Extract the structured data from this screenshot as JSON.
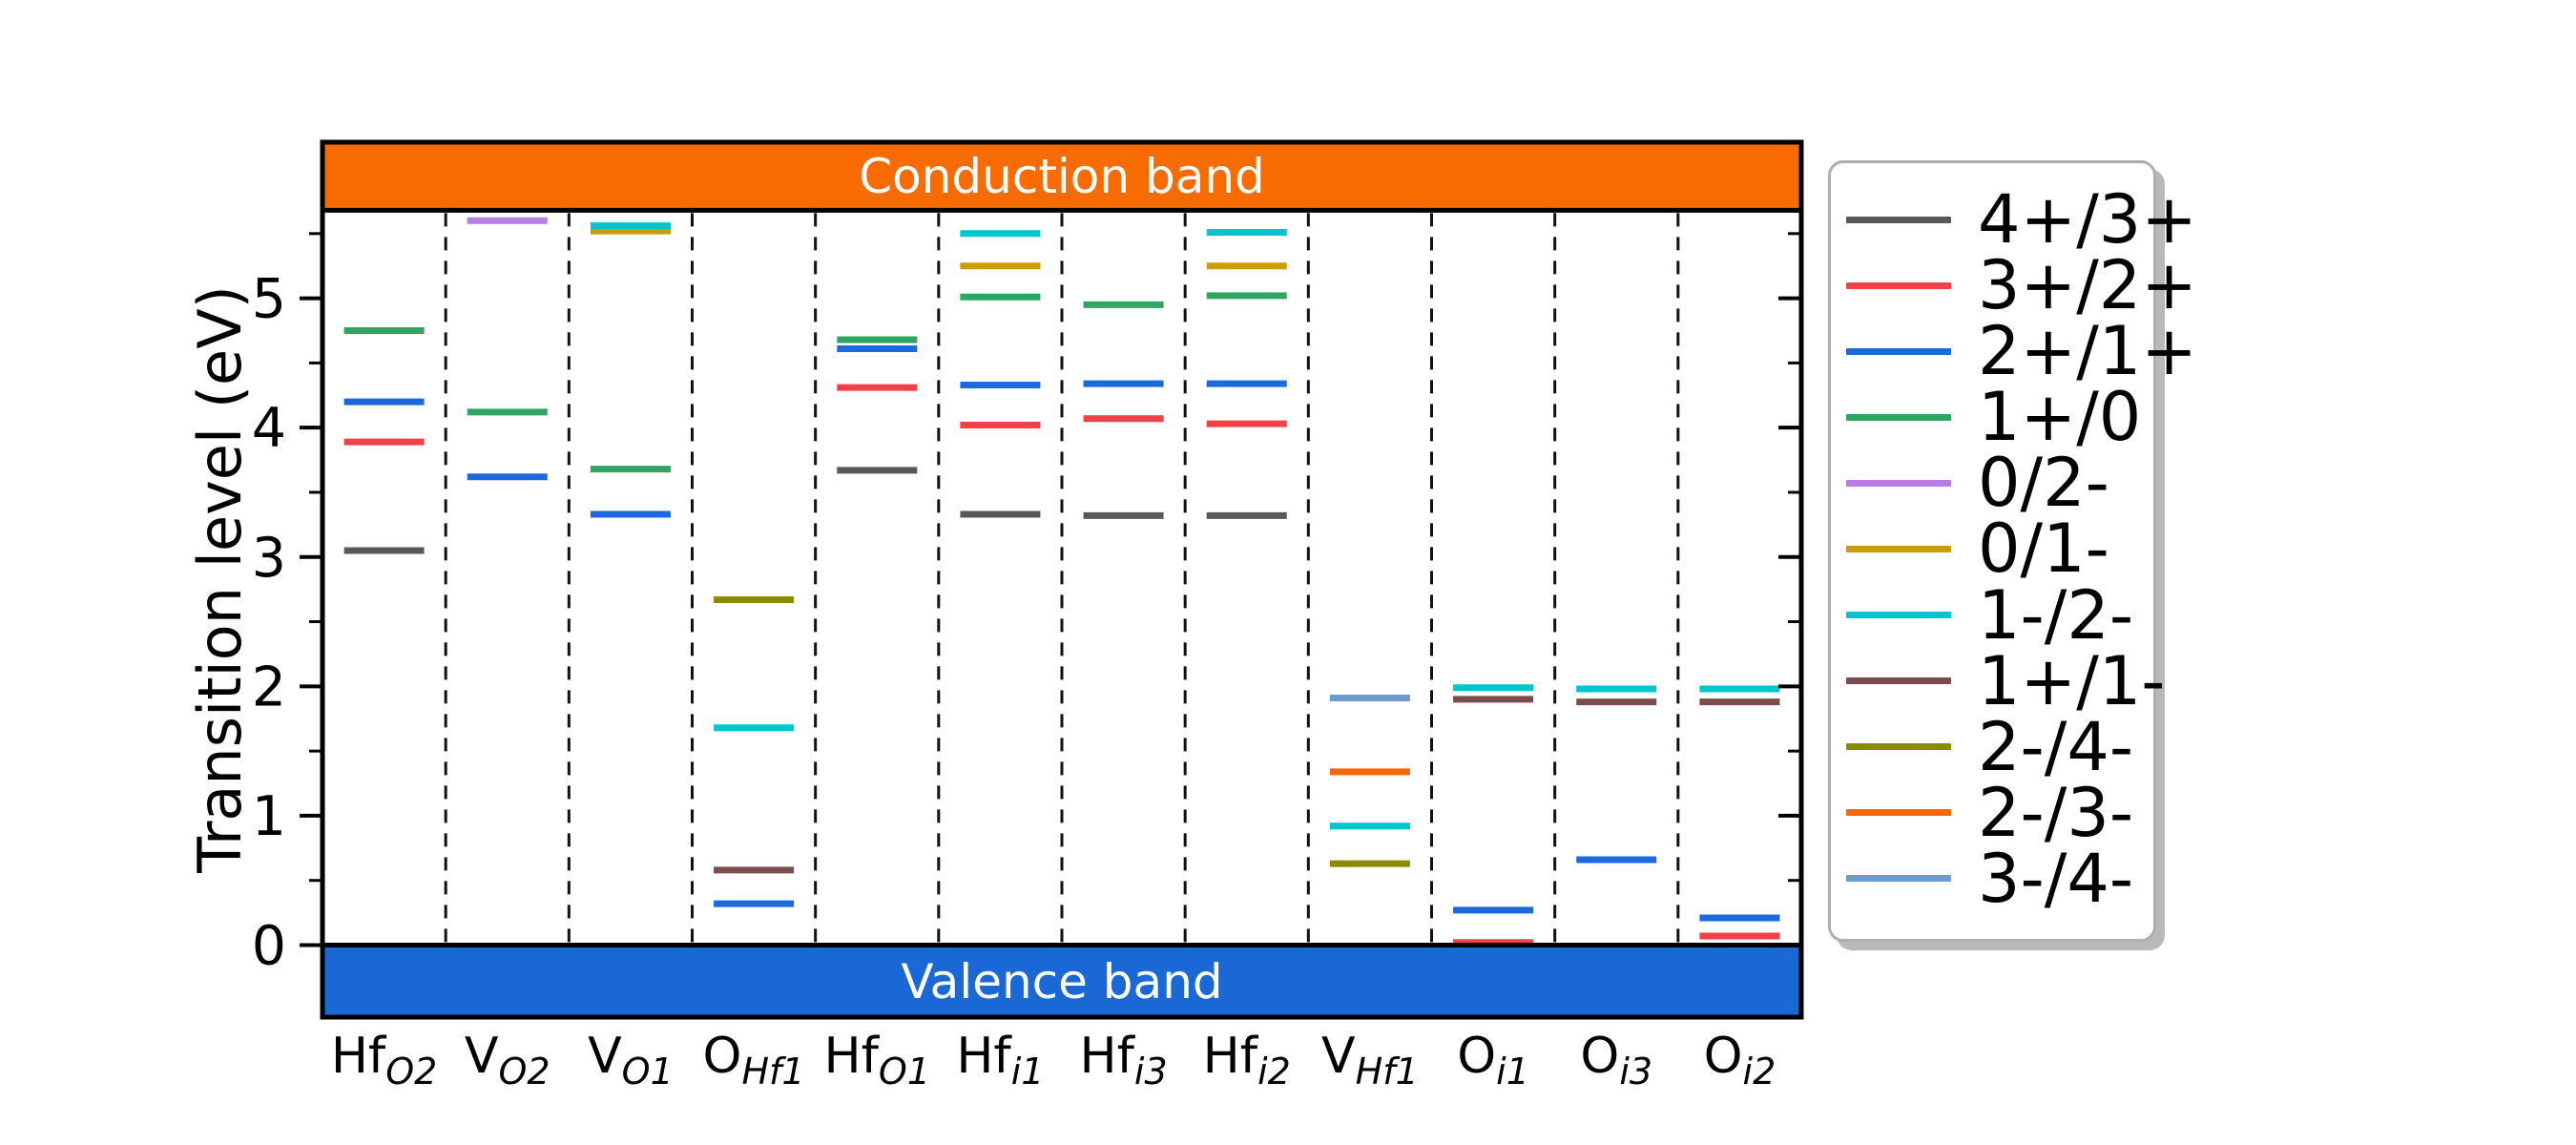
{
  "figure": {
    "background_color": "#ffffff"
  },
  "y_axis": {
    "label": "Transition level (eV)",
    "major_ticks": [
      0,
      1,
      2,
      3,
      4,
      5
    ],
    "minor_ticks": [
      0.5,
      1.5,
      2.5,
      3.5,
      4.5,
      5.5
    ],
    "range_eV": [
      -0.56,
      6.21
    ]
  },
  "bands": {
    "conduction": {
      "label": "Conduction band",
      "color": "#F86B00",
      "edge_eV": 5.68
    },
    "valence": {
      "label": "Valence band",
      "color": "#1A67D6",
      "edge_eV": 0.0
    }
  },
  "legend": {
    "entries": [
      {
        "label": "4+/3+",
        "color": "#58585a"
      },
      {
        "label": "3+/2+",
        "color": "#EF4146"
      },
      {
        "label": "2+/1+",
        "color": "#1C69DE"
      },
      {
        "label": "1+/0",
        "color": "#2FA463"
      },
      {
        "label": "0/2-",
        "color": "#BA7DE2"
      },
      {
        "label": "0/1-",
        "color": "#CB9D00"
      },
      {
        "label": "1-/2-",
        "color": "#00C4CE"
      },
      {
        "label": "1+/1-",
        "color": "#7C4B4B"
      },
      {
        "label": "2-/4-",
        "color": "#8B8B00"
      },
      {
        "label": "2-/3-",
        "color": "#FB6502"
      },
      {
        "label": "3-/4-",
        "color": "#6D9BD1"
      }
    ]
  },
  "chart_data": {
    "type": "scatter",
    "subtype": "defect-charge-transition-levels",
    "title": "",
    "xlabel": "",
    "ylabel": "Transition level (eV)",
    "ylim": [
      -0.56,
      6.21
    ],
    "conduction_band_edge_eV": 5.68,
    "valence_band_edge_eV": 0.0,
    "grid": false,
    "legend_position": "right-outside",
    "categories": [
      "Hf_O2",
      "V_O2",
      "V_O1",
      "O_Hf1",
      "Hf_O1",
      "Hf_i1",
      "Hf_i3",
      "Hf_i2",
      "V_Hf1",
      "O_i1",
      "O_i3",
      "O_i2"
    ],
    "columns": [
      {
        "main": "Hf",
        "sub": "O2",
        "levels": [
          {
            "transition": "4+/3+",
            "energy_eV": 3.05
          },
          {
            "transition": "3+/2+",
            "energy_eV": 3.89
          },
          {
            "transition": "2+/1+",
            "energy_eV": 4.2
          },
          {
            "transition": "1+/0",
            "energy_eV": 4.75
          }
        ]
      },
      {
        "main": "V",
        "sub": "O2",
        "levels": [
          {
            "transition": "2+/1+",
            "energy_eV": 3.62
          },
          {
            "transition": "1+/0",
            "energy_eV": 4.12
          },
          {
            "transition": "0/2-",
            "energy_eV": 5.6
          }
        ]
      },
      {
        "main": "V",
        "sub": "O1",
        "levels": [
          {
            "transition": "2+/1+",
            "energy_eV": 3.33
          },
          {
            "transition": "1+/0",
            "energy_eV": 3.68
          },
          {
            "transition": "0/1-",
            "energy_eV": 5.52
          },
          {
            "transition": "1-/2-",
            "energy_eV": 5.56
          }
        ]
      },
      {
        "main": "O",
        "sub": "Hf1",
        "levels": [
          {
            "transition": "2+/1+",
            "energy_eV": 0.32
          },
          {
            "transition": "1+/1-",
            "energy_eV": 0.58
          },
          {
            "transition": "1-/2-",
            "energy_eV": 1.68
          },
          {
            "transition": "2-/4-",
            "energy_eV": 2.67
          }
        ]
      },
      {
        "main": "Hf",
        "sub": "O1",
        "levels": [
          {
            "transition": "4+/3+",
            "energy_eV": 3.67
          },
          {
            "transition": "3+/2+",
            "energy_eV": 4.31
          },
          {
            "transition": "2+/1+",
            "energy_eV": 4.61
          },
          {
            "transition": "1+/0",
            "energy_eV": 4.68
          }
        ]
      },
      {
        "main": "Hf",
        "sub": "i1",
        "levels": [
          {
            "transition": "4+/3+",
            "energy_eV": 3.33
          },
          {
            "transition": "3+/2+",
            "energy_eV": 4.02
          },
          {
            "transition": "2+/1+",
            "energy_eV": 4.33
          },
          {
            "transition": "1+/0",
            "energy_eV": 5.01
          },
          {
            "transition": "0/1-",
            "energy_eV": 5.25
          },
          {
            "transition": "1-/2-",
            "energy_eV": 5.5
          }
        ]
      },
      {
        "main": "Hf",
        "sub": "i3",
        "levels": [
          {
            "transition": "4+/3+",
            "energy_eV": 3.32
          },
          {
            "transition": "3+/2+",
            "energy_eV": 4.07
          },
          {
            "transition": "2+/1+",
            "energy_eV": 4.34
          },
          {
            "transition": "1+/0",
            "energy_eV": 4.95
          }
        ]
      },
      {
        "main": "Hf",
        "sub": "i2",
        "levels": [
          {
            "transition": "4+/3+",
            "energy_eV": 3.32
          },
          {
            "transition": "3+/2+",
            "energy_eV": 4.03
          },
          {
            "transition": "2+/1+",
            "energy_eV": 4.34
          },
          {
            "transition": "1+/0",
            "energy_eV": 5.02
          },
          {
            "transition": "0/1-",
            "energy_eV": 5.25
          },
          {
            "transition": "1-/2-",
            "energy_eV": 5.51
          }
        ]
      },
      {
        "main": "V",
        "sub": "Hf1",
        "levels": [
          {
            "transition": "2-/4-",
            "energy_eV": 0.63
          },
          {
            "transition": "1-/2-",
            "energy_eV": 0.92
          },
          {
            "transition": "2-/3-",
            "energy_eV": 1.34
          },
          {
            "transition": "3-/4-",
            "energy_eV": 1.91
          }
        ]
      },
      {
        "main": "O",
        "sub": "i1",
        "levels": [
          {
            "transition": "3+/2+",
            "energy_eV": 0.02
          },
          {
            "transition": "2+/1+",
            "energy_eV": 0.27
          },
          {
            "transition": "1+/1-",
            "energy_eV": 1.9
          },
          {
            "transition": "1-/2-",
            "energy_eV": 1.99
          }
        ]
      },
      {
        "main": "O",
        "sub": "i3",
        "levels": [
          {
            "transition": "2+/1+",
            "energy_eV": 0.66
          },
          {
            "transition": "1+/1-",
            "energy_eV": 1.88
          },
          {
            "transition": "1-/2-",
            "energy_eV": 1.98
          }
        ]
      },
      {
        "main": "O",
        "sub": "i2",
        "levels": [
          {
            "transition": "3+/2+",
            "energy_eV": 0.07
          },
          {
            "transition": "2+/1+",
            "energy_eV": 0.21
          },
          {
            "transition": "1+/1-",
            "energy_eV": 1.88
          },
          {
            "transition": "1-/2-",
            "energy_eV": 1.98
          }
        ]
      }
    ]
  }
}
